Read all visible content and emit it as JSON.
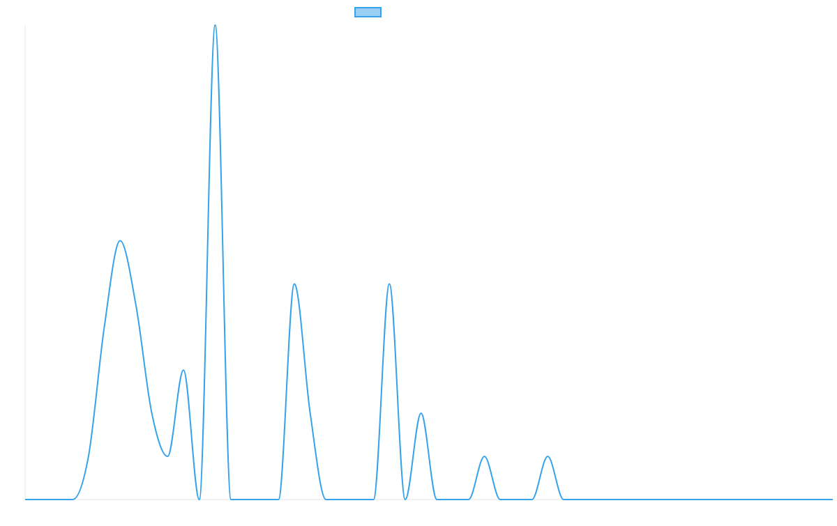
{
  "chart_data": {
    "type": "line",
    "title": "",
    "xlabel": "",
    "ylabel": "",
    "legend_position": "top-center",
    "grid": false,
    "colors": {
      "line": "#36a2eb",
      "fill": "#9ad0f5",
      "axis": "#e6e6e6"
    },
    "xlim": [
      0,
      51
    ],
    "ylim": [
      0,
      1.1
    ],
    "series": [
      {
        "name": "",
        "x": [
          0,
          1,
          2,
          3,
          4,
          5,
          6,
          7,
          8,
          9,
          10,
          11,
          12,
          13,
          14,
          15,
          16,
          17,
          18,
          19,
          20,
          21,
          22,
          23,
          24,
          25,
          26,
          27,
          28,
          29,
          30,
          31,
          32,
          33,
          34,
          35,
          36,
          37,
          38,
          39,
          40,
          41,
          42,
          43,
          44,
          45,
          46,
          47,
          48,
          49,
          50,
          51
        ],
        "y": [
          0,
          0,
          0,
          0,
          0.1,
          0.4,
          0.6,
          0.45,
          0.2,
          0.1,
          0.3,
          0,
          1.1,
          0,
          0,
          0,
          0,
          0.5,
          0.2,
          0,
          0,
          0,
          0,
          0.5,
          0,
          0.2,
          0,
          0,
          0,
          0.1,
          0,
          0,
          0,
          0.1,
          0,
          0,
          0,
          0,
          0,
          0,
          0,
          0,
          0,
          0,
          0,
          0,
          0,
          0,
          0,
          0,
          0,
          0
        ]
      }
    ]
  }
}
